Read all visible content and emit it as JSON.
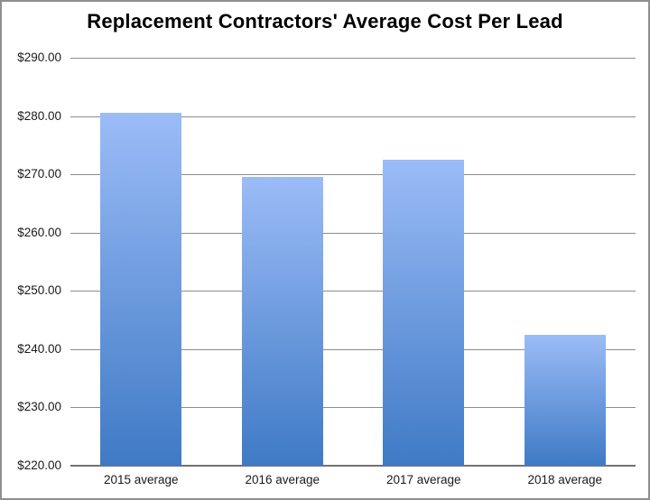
{
  "chart_data": {
    "type": "bar",
    "title": "Replacement Contractors' Average Cost Per Lead",
    "categories": [
      "2015 average",
      "2016 average",
      "2017 average",
      "2018 average"
    ],
    "values": [
      280.5,
      269.5,
      272.5,
      242.5
    ],
    "xlabel": "",
    "ylabel": "",
    "ylim": [
      220,
      290
    ],
    "ytick_step": 10,
    "ytick_labels": [
      "$290.00",
      "$280.00",
      "$270.00",
      "$260.00",
      "$250.00",
      "$240.00",
      "$230.00",
      "$220.00"
    ],
    "grid": true,
    "legend": false,
    "colors": {
      "bar_gradient_top": "#9bbcf7",
      "bar_gradient_bottom": "#3f7ac5",
      "gridline": "#8c8c8c",
      "axis_line": "#737373",
      "title_text": "#000000",
      "tick_text": "#1a1a1a",
      "frame_border": "#8f8f8f",
      "background": "#ffffff"
    }
  }
}
